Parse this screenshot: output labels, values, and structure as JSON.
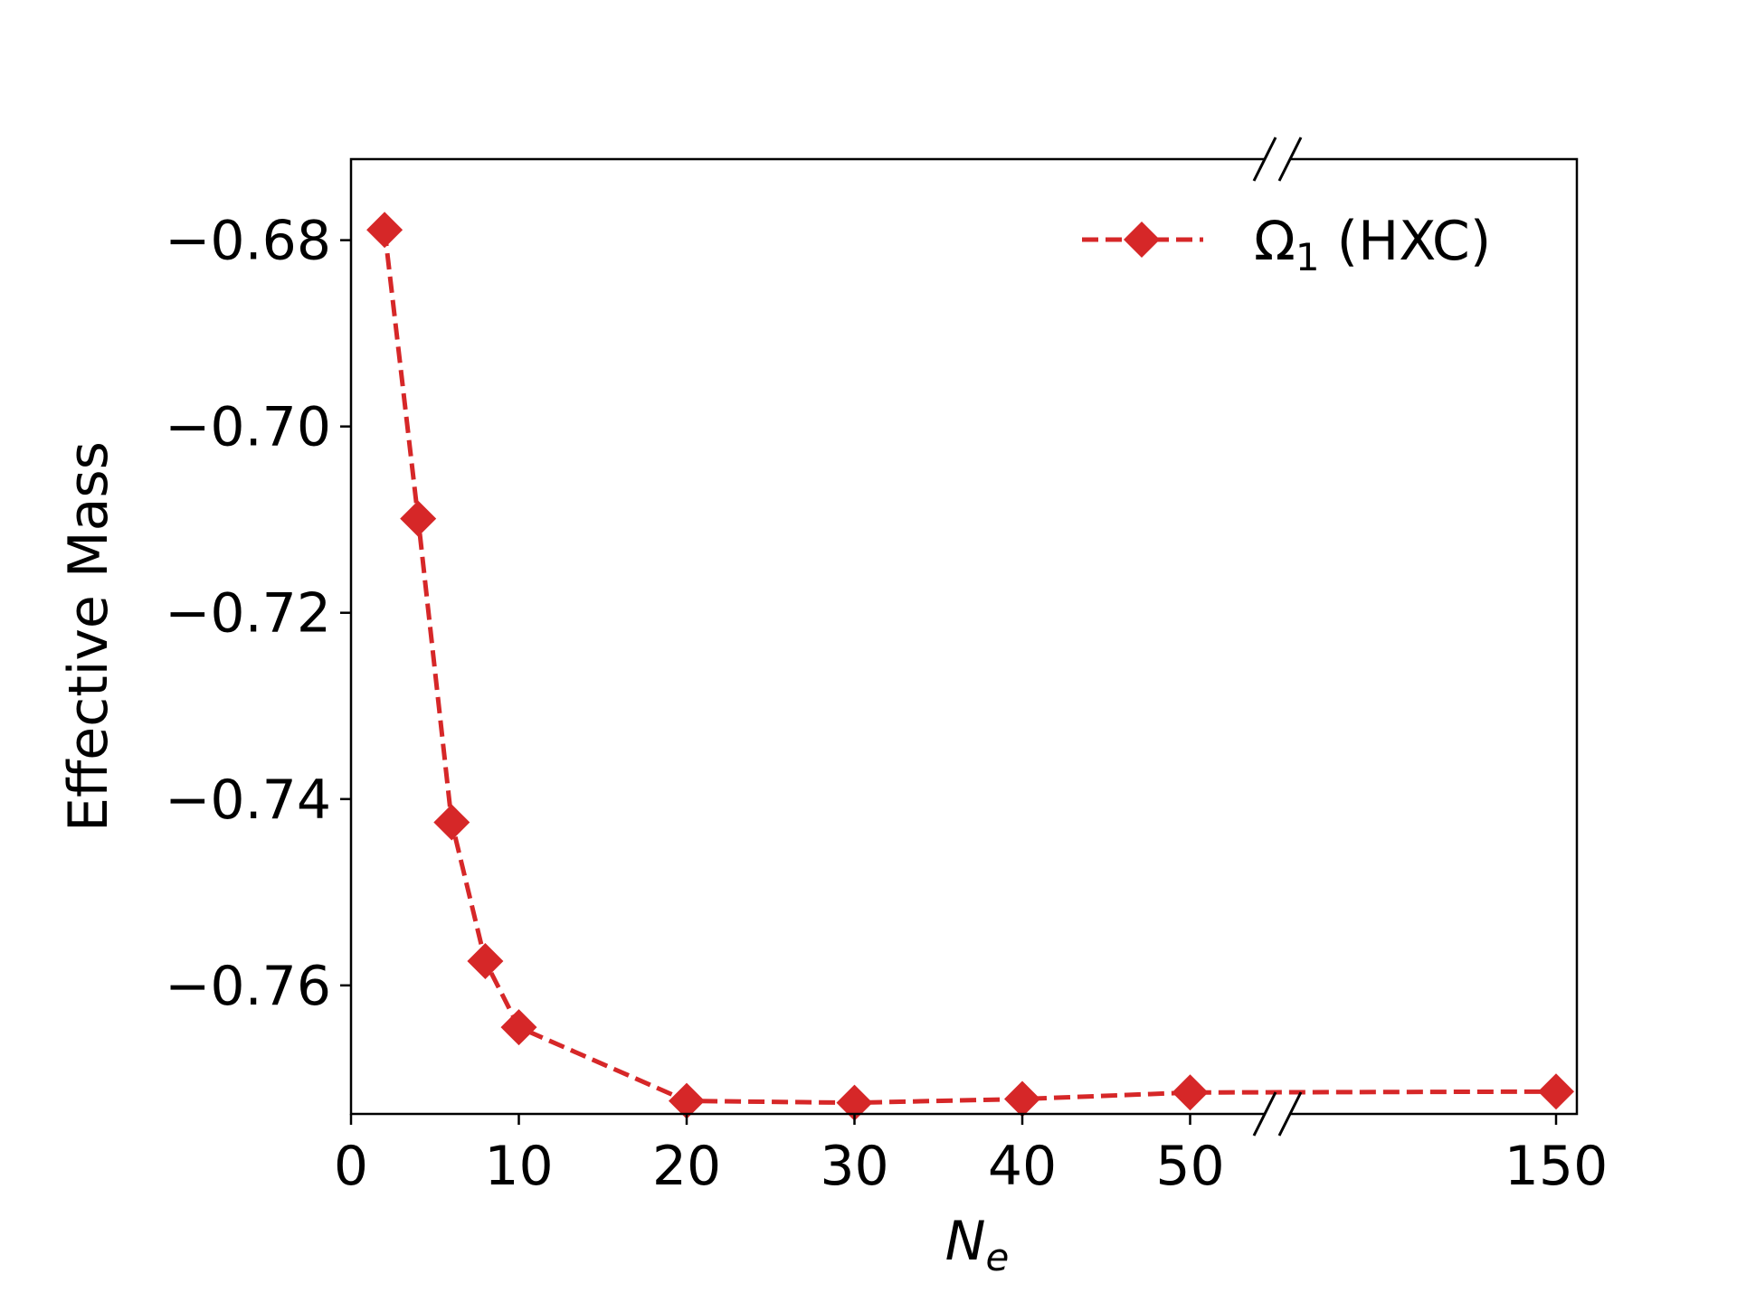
{
  "chart_data": {
    "type": "line",
    "xlabel_main": "N",
    "xlabel_sub": "e",
    "ylabel": "Effective Mass",
    "x_ticks": [
      "0",
      "10",
      "20",
      "30",
      "40",
      "50",
      "150"
    ],
    "y_ticks": [
      "−0.68",
      "−0.70",
      "−0.72",
      "−0.74",
      "−0.76"
    ],
    "ylim": [
      -0.7738,
      -0.6713
    ],
    "x_axis": "broken between 50 and 150",
    "grid": false,
    "legend_position": "top-right",
    "series": [
      {
        "name_main": "Ω",
        "name_sub": "1",
        "name_suffix": " (HXC)",
        "color": "#d62728",
        "linestyle": "dashed",
        "marker": "diamond",
        "x": [
          2,
          4,
          6,
          8,
          10,
          20,
          30,
          40,
          50,
          150
        ],
        "y": [
          -0.6789,
          -0.7099,
          -0.7425,
          -0.7574,
          -0.7645,
          -0.7724,
          -0.7726,
          -0.7722,
          -0.7715,
          -0.7714
        ]
      }
    ]
  }
}
